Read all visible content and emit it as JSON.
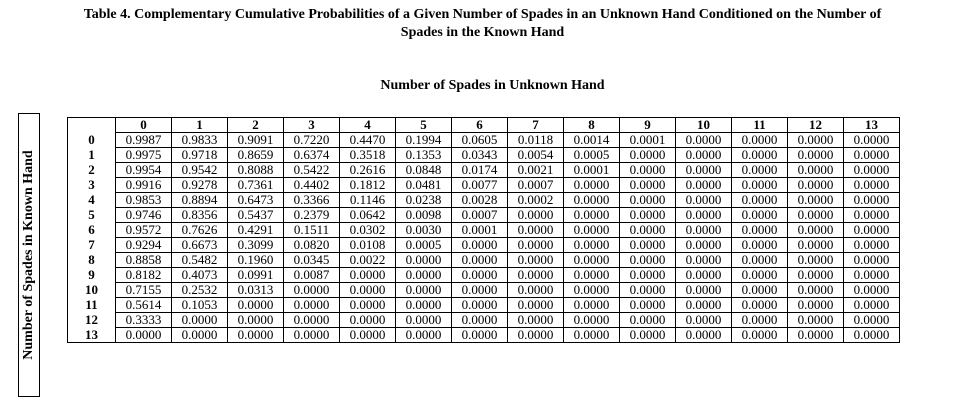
{
  "caption": {
    "line1": "Table 4. Complementary Cumulative Probabilities of a Given Number of Spades in an Unknown Hand Conditioned on the Number of",
    "line2": "Spades in the Known Hand"
  },
  "column_axis_label": "Number of Spades in Unknown Hand",
  "row_axis_label": "Number of Spades in Known Hand",
  "columns": [
    "0",
    "1",
    "2",
    "3",
    "4",
    "5",
    "6",
    "7",
    "8",
    "9",
    "10",
    "11",
    "12",
    "13"
  ],
  "rows": [
    {
      "label": "0",
      "values": [
        "0.9987",
        "0.9833",
        "0.9091",
        "0.7220",
        "0.4470",
        "0.1994",
        "0.0605",
        "0.0118",
        "0.0014",
        "0.0001",
        "0.0000",
        "0.0000",
        "0.0000",
        "0.0000"
      ]
    },
    {
      "label": "1",
      "values": [
        "0.9975",
        "0.9718",
        "0.8659",
        "0.6374",
        "0.3518",
        "0.1353",
        "0.0343",
        "0.0054",
        "0.0005",
        "0.0000",
        "0.0000",
        "0.0000",
        "0.0000",
        "0.0000"
      ]
    },
    {
      "label": "2",
      "values": [
        "0.9954",
        "0.9542",
        "0.8088",
        "0.5422",
        "0.2616",
        "0.0848",
        "0.0174",
        "0.0021",
        "0.0001",
        "0.0000",
        "0.0000",
        "0.0000",
        "0.0000",
        "0.0000"
      ]
    },
    {
      "label": "3",
      "values": [
        "0.9916",
        "0.9278",
        "0.7361",
        "0.4402",
        "0.1812",
        "0.0481",
        "0.0077",
        "0.0007",
        "0.0000",
        "0.0000",
        "0.0000",
        "0.0000",
        "0.0000",
        "0.0000"
      ]
    },
    {
      "label": "4",
      "values": [
        "0.9853",
        "0.8894",
        "0.6473",
        "0.3366",
        "0.1146",
        "0.0238",
        "0.0028",
        "0.0002",
        "0.0000",
        "0.0000",
        "0.0000",
        "0.0000",
        "0.0000",
        "0.0000"
      ]
    },
    {
      "label": "5",
      "values": [
        "0.9746",
        "0.8356",
        "0.5437",
        "0.2379",
        "0.0642",
        "0.0098",
        "0.0007",
        "0.0000",
        "0.0000",
        "0.0000",
        "0.0000",
        "0.0000",
        "0.0000",
        "0.0000"
      ]
    },
    {
      "label": "6",
      "values": [
        "0.9572",
        "0.7626",
        "0.4291",
        "0.1511",
        "0.0302",
        "0.0030",
        "0.0001",
        "0.0000",
        "0.0000",
        "0.0000",
        "0.0000",
        "0.0000",
        "0.0000",
        "0.0000"
      ]
    },
    {
      "label": "7",
      "values": [
        "0.9294",
        "0.6673",
        "0.3099",
        "0.0820",
        "0.0108",
        "0.0005",
        "0.0000",
        "0.0000",
        "0.0000",
        "0.0000",
        "0.0000",
        "0.0000",
        "0.0000",
        "0.0000"
      ]
    },
    {
      "label": "8",
      "values": [
        "0.8858",
        "0.5482",
        "0.1960",
        "0.0345",
        "0.0022",
        "0.0000",
        "0.0000",
        "0.0000",
        "0.0000",
        "0.0000",
        "0.0000",
        "0.0000",
        "0.0000",
        "0.0000"
      ]
    },
    {
      "label": "9",
      "values": [
        "0.8182",
        "0.4073",
        "0.0991",
        "0.0087",
        "0.0000",
        "0.0000",
        "0.0000",
        "0.0000",
        "0.0000",
        "0.0000",
        "0.0000",
        "0.0000",
        "0.0000",
        "0.0000"
      ]
    },
    {
      "label": "10",
      "values": [
        "0.7155",
        "0.2532",
        "0.0313",
        "0.0000",
        "0.0000",
        "0.0000",
        "0.0000",
        "0.0000",
        "0.0000",
        "0.0000",
        "0.0000",
        "0.0000",
        "0.0000",
        "0.0000"
      ]
    },
    {
      "label": "11",
      "values": [
        "0.5614",
        "0.1053",
        "0.0000",
        "0.0000",
        "0.0000",
        "0.0000",
        "0.0000",
        "0.0000",
        "0.0000",
        "0.0000",
        "0.0000",
        "0.0000",
        "0.0000",
        "0.0000"
      ]
    },
    {
      "label": "12",
      "values": [
        "0.3333",
        "0.0000",
        "0.0000",
        "0.0000",
        "0.0000",
        "0.0000",
        "0.0000",
        "0.0000",
        "0.0000",
        "0.0000",
        "0.0000",
        "0.0000",
        "0.0000",
        "0.0000"
      ]
    },
    {
      "label": "13",
      "values": [
        "0.0000",
        "0.0000",
        "0.0000",
        "0.0000",
        "0.0000",
        "0.0000",
        "0.0000",
        "0.0000",
        "0.0000",
        "0.0000",
        "0.0000",
        "0.0000",
        "0.0000",
        "0.0000"
      ]
    }
  ]
}
